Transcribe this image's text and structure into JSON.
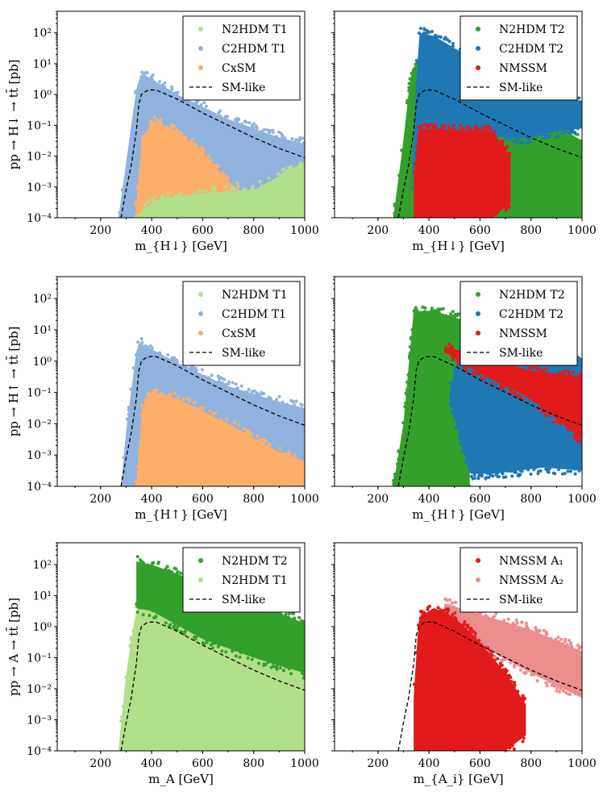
{
  "figure": {
    "description_colors": {
      "n2hdm_t1": "#b2df8a",
      "n2hdm_t2": "#33a02c",
      "c2hdm_t1": "#8fb3de",
      "c2hdm_t2": "#1f78b4",
      "cxsm": "#fdae6b",
      "nmssm": "#e31a1c",
      "nmssm_a2": "#ec8e8e",
      "sm_like": "#000000"
    }
  },
  "chart_data": [
    {
      "type": "scatter",
      "panel": "top-left",
      "ylabel": "pp → H↓ → tt̄ [pb]",
      "xlabel": "m_{H↓} [GeV]",
      "xlim": [
        30,
        1000
      ],
      "ylim_log10": [
        -4,
        2.7
      ],
      "xticks": [
        "200",
        "400",
        "600",
        "800",
        "1000"
      ],
      "yticks": [
        "10⁻⁴",
        "10⁻³",
        "10⁻²",
        "10⁻¹",
        "10⁰",
        "10¹",
        "10²"
      ],
      "legend_position": "top-right",
      "series": [
        {
          "name": "N2HDM T1",
          "color": "#b2df8a",
          "kind": "points",
          "envelope": {
            "x": [
              330,
              420,
              600,
              800,
              1000
            ],
            "upper": [
              -4,
              -3.4,
              -3.2,
              -3.1,
              -2.2
            ],
            "lower": [
              -4,
              -4,
              -4,
              -4,
              -4
            ]
          }
        },
        {
          "name": "C2HDM T1",
          "color": "#8fb3de",
          "kind": "points",
          "envelope": {
            "x": [
              270,
              300,
              340,
              360,
              500,
              700,
              900,
              1000
            ],
            "upper": [
              -4,
              -2.2,
              0.2,
              0.7,
              0.0,
              -0.8,
              -1.4,
              -1.6
            ],
            "lower": [
              -4,
              -4,
              -4,
              -4,
              -4,
              -4,
              -4,
              -4
            ]
          }
        },
        {
          "name": "CxSM",
          "color": "#fdae6b",
          "kind": "points",
          "envelope": {
            "x": [
              335,
              360,
              400,
              500,
              600,
              700,
              800
            ],
            "upper": [
              -4,
              -1.6,
              -0.85,
              -1.2,
              -1.9,
              -2.8,
              -3.5
            ],
            "lower": [
              -4,
              -4,
              -4,
              -4,
              -4,
              -4,
              -4
            ]
          }
        },
        {
          "name": "SM-like",
          "color": "#000000",
          "kind": "dashed-line",
          "x": [
            280,
            300,
            320,
            340,
            350,
            360,
            380,
            400,
            420,
            500,
            600,
            700,
            800,
            900,
            1000
          ],
          "y": [
            -4,
            -3.1,
            -2.3,
            -1.2,
            -0.3,
            0.0,
            0.12,
            0.15,
            0.14,
            -0.15,
            -0.6,
            -1.0,
            -1.4,
            -1.75,
            -2.05
          ]
        }
      ]
    },
    {
      "type": "scatter",
      "panel": "top-right",
      "xlabel": "m_{H↓} [GeV]",
      "xlim": [
        30,
        1000
      ],
      "ylim_log10": [
        -4,
        2.7
      ],
      "xticks": [
        "200",
        "400",
        "600",
        "800",
        "1000"
      ],
      "legend_position": "top-right",
      "series": [
        {
          "name": "N2HDM T2",
          "color": "#33a02c",
          "kind": "points",
          "envelope": {
            "x": [
              260,
              300,
              330,
              380,
              500,
              700,
              900,
              1000
            ],
            "upper": [
              -4,
              -1.5,
              0.8,
              1.2,
              0.5,
              -0.2,
              -1.0,
              -1.5
            ],
            "lower": [
              -4,
              -4,
              -4,
              -4,
              -4,
              -4,
              -4,
              -4
            ]
          }
        },
        {
          "name": "C2HDM T2",
          "color": "#1f78b4",
          "kind": "points",
          "envelope": {
            "x": [
              330,
              360,
              420,
              500,
              600,
              700,
              800,
              900,
              1000
            ],
            "upper": [
              -3,
              2.0,
              1.9,
              1.5,
              1.1,
              0.7,
              0.3,
              -0.1,
              -0.2
            ],
            "lower": [
              -3,
              -1.5,
              -1.6,
              -1.4,
              -1.3,
              -1.4,
              -1.4,
              -1.2,
              -1.1
            ]
          }
        },
        {
          "name": "NMSSM",
          "color": "#e31a1c",
          "kind": "points",
          "envelope": {
            "x": [
              340,
              360,
              500,
              650,
              720
            ],
            "upper": [
              -2.7,
              -1.1,
              -1.15,
              -1.2,
              -2.0
            ],
            "lower": [
              -4,
              -4,
              -4,
              -4,
              -3.5
            ]
          }
        },
        {
          "name": "SM-like",
          "color": "#000000",
          "kind": "dashed-line",
          "x": [
            280,
            300,
            320,
            340,
            350,
            360,
            380,
            400,
            420,
            500,
            600,
            700,
            800,
            900,
            1000
          ],
          "y": [
            -4,
            -3.1,
            -2.3,
            -1.2,
            -0.3,
            0.0,
            0.12,
            0.15,
            0.14,
            -0.15,
            -0.6,
            -1.0,
            -1.4,
            -1.75,
            -2.05
          ]
        }
      ]
    },
    {
      "type": "scatter",
      "panel": "middle-left",
      "ylabel": "pp → H↑ → tt̄ [pb]",
      "xlabel": "m_{H↑} [GeV]",
      "xlim": [
        30,
        1000
      ],
      "ylim_log10": [
        -4,
        2.7
      ],
      "xticks": [
        "200",
        "400",
        "600",
        "800",
        "1000"
      ],
      "yticks": [
        "10⁻⁴",
        "10⁻³",
        "10⁻²",
        "10⁻¹",
        "10⁰",
        "10¹",
        "10²"
      ],
      "legend_position": "top-right",
      "series": [
        {
          "name": "N2HDM T1",
          "color": "#b2df8a",
          "kind": "points",
          "envelope": {
            "x": [
              330,
              1000
            ],
            "upper": [
              -4,
              -4
            ],
            "lower": [
              -4,
              -4
            ]
          }
        },
        {
          "name": "C2HDM T1",
          "color": "#8fb3de",
          "kind": "points",
          "envelope": {
            "x": [
              280,
              300,
              340,
              350,
              500,
              700,
              900,
              1000
            ],
            "upper": [
              -4,
              -2.2,
              0.3,
              0.6,
              -0.05,
              -0.8,
              -1.3,
              -1.5
            ],
            "lower": [
              -4,
              -4,
              -4,
              -4,
              -4,
              -4,
              -4,
              -4
            ]
          }
        },
        {
          "name": "CxSM",
          "color": "#fdae6b",
          "kind": "points",
          "envelope": {
            "x": [
              340,
              360,
              400,
              500,
              700,
              900,
              1000
            ],
            "upper": [
              -4,
              -1.6,
              -0.95,
              -1.2,
              -2.0,
              -2.9,
              -3.2
            ],
            "lower": [
              -4,
              -4,
              -4,
              -4,
              -4,
              -4,
              -4
            ]
          }
        },
        {
          "name": "SM-like",
          "color": "#000000",
          "kind": "dashed-line",
          "x": [
            280,
            300,
            320,
            340,
            350,
            360,
            380,
            400,
            420,
            500,
            600,
            700,
            800,
            900,
            1000
          ],
          "y": [
            -4,
            -3.1,
            -2.3,
            -1.2,
            -0.3,
            0.0,
            0.12,
            0.15,
            0.14,
            -0.15,
            -0.6,
            -1.0,
            -1.4,
            -1.75,
            -2.05
          ]
        }
      ]
    },
    {
      "type": "scatter",
      "panel": "middle-right",
      "xlabel": "m_{H↑} [GeV]",
      "xlim": [
        30,
        1000
      ],
      "ylim_log10": [
        -4,
        2.7
      ],
      "xticks": [
        "200",
        "400",
        "600",
        "800",
        "1000"
      ],
      "legend_position": "top-right",
      "series": [
        {
          "name": "N2HDM T2",
          "color": "#33a02c",
          "kind": "points",
          "envelope": {
            "x": [
              260,
              300,
              340,
              420,
              500,
              560
            ],
            "upper": [
              -4,
              -2.0,
              1.6,
              1.6,
              1.4,
              1.2
            ],
            "lower": [
              -4,
              -4,
              -4,
              -4,
              -4,
              -4
            ]
          }
        },
        {
          "name": "C2HDM T2",
          "color": "#1f78b4",
          "kind": "points",
          "envelope": {
            "x": [
              480,
              560,
              650,
              750,
              850,
              1000
            ],
            "upper": [
              -1.0,
              1.5,
              1.3,
              0.8,
              0.5,
              0.1
            ],
            "lower": [
              -1.2,
              -3.6,
              -3.6,
              -3.5,
              -3.4,
              -3.5
            ]
          }
        },
        {
          "name": "NMSSM",
          "color": "#e31a1c",
          "kind": "points",
          "envelope": {
            "x": [
              460,
              600,
              800,
              1000
            ],
            "upper": [
              0.5,
              0.1,
              -0.3,
              -0.5
            ],
            "lower": [
              0.3,
              -0.4,
              -1.2,
              -2.5
            ]
          }
        },
        {
          "name": "SM-like",
          "color": "#000000",
          "kind": "dashed-line",
          "x": [
            280,
            300,
            320,
            340,
            350,
            360,
            380,
            400,
            420,
            500,
            600,
            700,
            800,
            900,
            1000
          ],
          "y": [
            -4,
            -3.1,
            -2.3,
            -1.2,
            -0.3,
            0.0,
            0.12,
            0.15,
            0.14,
            -0.15,
            -0.6,
            -1.0,
            -1.4,
            -1.75,
            -2.05
          ]
        }
      ]
    },
    {
      "type": "scatter",
      "panel": "bottom-left",
      "ylabel": "pp → A → tt̄ [pb]",
      "xlabel": "m_A [GeV]",
      "xlim": [
        30,
        1000
      ],
      "ylim_log10": [
        -4,
        2.7
      ],
      "xticks": [
        "200",
        "400",
        "600",
        "800",
        "1000"
      ],
      "yticks": [
        "10⁻⁴",
        "10⁻³",
        "10⁻²",
        "10⁻¹",
        "10⁰",
        "10¹",
        "10²"
      ],
      "legend_position": "top-right",
      "series": [
        {
          "name": "N2HDM T2",
          "color": "#33a02c",
          "kind": "points",
          "envelope": {
            "x": [
              340,
              400,
              600,
              800,
              1000
            ],
            "upper": [
              2.1,
              2.0,
              1.4,
              0.8,
              0.1
            ],
            "lower": [
              0.6,
              0.5,
              -0.4,
              -1.0,
              -1.5
            ]
          }
        },
        {
          "name": "N2HDM T1",
          "color": "#b2df8a",
          "kind": "points",
          "envelope": {
            "x": [
              270,
              300,
              340,
              360,
              500,
              700,
              900,
              1000
            ],
            "upper": [
              -4,
              -1.5,
              0.6,
              0.7,
              0.2,
              -0.4,
              -0.9,
              -1.1
            ],
            "lower": [
              -4,
              -4,
              -4,
              -4,
              -4,
              -4,
              -4,
              -4
            ]
          }
        },
        {
          "name": "SM-like",
          "color": "#000000",
          "kind": "dashed-line",
          "x": [
            280,
            300,
            320,
            340,
            350,
            360,
            380,
            400,
            420,
            500,
            600,
            700,
            800,
            900,
            1000
          ],
          "y": [
            -4,
            -3.1,
            -2.3,
            -1.2,
            -0.3,
            0.0,
            0.12,
            0.15,
            0.14,
            -0.15,
            -0.6,
            -1.0,
            -1.4,
            -1.75,
            -2.05
          ]
        }
      ]
    },
    {
      "type": "scatter",
      "panel": "bottom-right",
      "xlabel": "m_{A_i} [GeV]",
      "xlim": [
        30,
        1000
      ],
      "ylim_log10": [
        -4,
        2.7
      ],
      "xticks": [
        "200",
        "400",
        "600",
        "800",
        "1000"
      ],
      "legend_position": "top-right",
      "series": [
        {
          "name": "NMSSM A₁",
          "color": "#e31a1c",
          "kind": "points",
          "envelope": {
            "x": [
              340,
              360,
              420,
              500,
              600,
              700,
              780
            ],
            "upper": [
              -2.3,
              0.3,
              0.6,
              0.3,
              -0.5,
              -1.5,
              -2.5
            ],
            "lower": [
              -4,
              -4,
              -4,
              -4,
              -4,
              -4,
              -3.5
            ]
          }
        },
        {
          "name": "NMSSM A₂",
          "color": "#ec8e8e",
          "kind": "points",
          "envelope": {
            "x": [
              460,
              600,
              800,
              1000
            ],
            "upper": [
              0.75,
              0.4,
              -0.1,
              -0.8
            ],
            "lower": [
              0.3,
              -0.6,
              -1.5,
              -2.3
            ]
          }
        },
        {
          "name": "SM-like",
          "color": "#000000",
          "kind": "dashed-line",
          "x": [
            280,
            300,
            320,
            340,
            350,
            360,
            380,
            400,
            420,
            500,
            600,
            700,
            800,
            900,
            1000
          ],
          "y": [
            -4,
            -3.1,
            -2.3,
            -1.2,
            -0.3,
            0.0,
            0.12,
            0.15,
            0.14,
            -0.15,
            -0.6,
            -1.0,
            -1.4,
            -1.75,
            -2.05
          ]
        }
      ]
    }
  ]
}
